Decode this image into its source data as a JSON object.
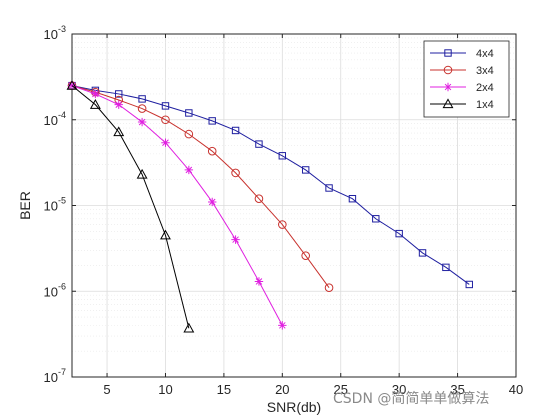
{
  "chart_data": {
    "type": "line",
    "title": "",
    "xlabel": "SNR(db)",
    "ylabel": "BER",
    "xlim": [
      2,
      40
    ],
    "ylim": [
      1e-07,
      0.001
    ],
    "yscale": "log",
    "xticks": [
      5,
      10,
      15,
      20,
      25,
      30,
      35,
      40
    ],
    "yticks": [
      {
        "base": "10",
        "exp": "-7",
        "value": 1e-07
      },
      {
        "base": "10",
        "exp": "-6",
        "value": 1e-06
      },
      {
        "base": "10",
        "exp": "-5",
        "value": 1e-05
      },
      {
        "base": "10",
        "exp": "-4",
        "value": 0.0001
      },
      {
        "base": "10",
        "exp": "-3",
        "value": 0.001
      }
    ],
    "grid": true,
    "minor_grid": true,
    "legend_position": "top-right",
    "series": [
      {
        "name": "4x4",
        "color": "#1f1fa0",
        "marker": "square",
        "x": [
          2,
          4,
          6,
          8,
          10,
          12,
          14,
          16,
          18,
          20,
          22,
          24,
          26,
          28,
          30,
          32,
          34,
          36
        ],
        "y": [
          0.00025,
          0.00022,
          0.0002,
          0.000175,
          0.000145,
          0.00012,
          9.7e-05,
          7.5e-05,
          5.2e-05,
          3.8e-05,
          2.6e-05,
          1.6e-05,
          1.2e-05,
          7e-06,
          4.7e-06,
          2.8e-06,
          1.9e-06,
          1.2e-06
        ]
      },
      {
        "name": "3x4",
        "color": "#c8322e",
        "marker": "circle",
        "x": [
          2,
          4,
          6,
          8,
          10,
          12,
          14,
          16,
          18,
          20,
          22,
          24
        ],
        "y": [
          0.00025,
          0.00021,
          0.00017,
          0.000135,
          0.0001,
          6.8e-05,
          4.3e-05,
          2.4e-05,
          1.2e-05,
          6e-06,
          2.6e-06,
          1.1e-06
        ]
      },
      {
        "name": "2x4",
        "color": "#e020e0",
        "marker": "star",
        "x": [
          2,
          4,
          6,
          8,
          10,
          12,
          14,
          16,
          18,
          20
        ],
        "y": [
          0.00025,
          0.0002,
          0.00015,
          9.4e-05,
          5.4e-05,
          2.6e-05,
          1.1e-05,
          4e-06,
          1.3e-06,
          4e-07
        ]
      },
      {
        "name": "1x4",
        "color": "#000000",
        "marker": "triangle",
        "x": [
          2,
          4,
          6,
          8,
          10,
          12
        ],
        "y": [
          0.00025,
          0.00015,
          7.2e-05,
          2.3e-05,
          4.5e-06,
          3.7e-07
        ]
      }
    ]
  },
  "watermark": "CSDN @简简单单做算法"
}
